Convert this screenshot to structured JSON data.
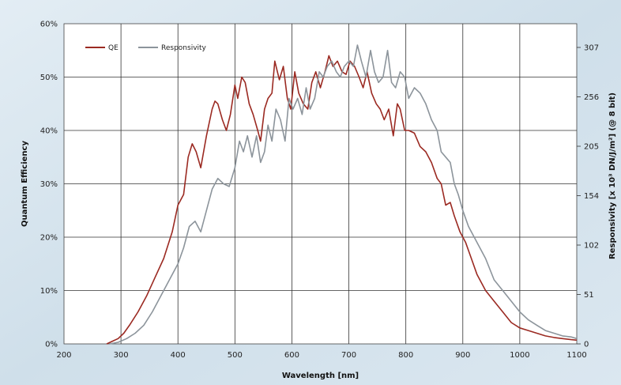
{
  "chart_data": {
    "type": "line",
    "xlabel": "Wavelength [nm]",
    "ylabel": "Quantum Efficiency",
    "ylabel_right": "Responsivity [x 10³ DN/J/m²] (@ 8 bit)",
    "xlim": [
      200,
      1100
    ],
    "ylim": [
      0,
      60
    ],
    "x_ticks": [
      200,
      300,
      400,
      500,
      600,
      700,
      800,
      900,
      1000,
      1100
    ],
    "y_ticks": [
      0,
      10,
      20,
      30,
      40,
      50,
      60
    ],
    "y_tick_labels": [
      "0%",
      "10%",
      "20%",
      "30%",
      "40%",
      "50%",
      "60%"
    ],
    "y_right_ticks": [
      0,
      51,
      102,
      154,
      205,
      256,
      307
    ],
    "grid": true,
    "legend_position": "top-left",
    "series": [
      {
        "name": "QE",
        "color": "#9b2a22",
        "x": [
          275,
          285,
          295,
          305,
          315,
          330,
          345,
          360,
          375,
          390,
          400,
          410,
          418,
          425,
          432,
          440,
          450,
          460,
          465,
          470,
          478,
          485,
          492,
          500,
          505,
          512,
          518,
          525,
          532,
          540,
          545,
          552,
          558,
          565,
          570,
          578,
          585,
          592,
          598,
          605,
          612,
          620,
          628,
          635,
          642,
          650,
          658,
          665,
          672,
          680,
          688,
          695,
          702,
          710,
          718,
          725,
          732,
          740,
          748,
          755,
          762,
          770,
          778,
          785,
          790,
          798,
          805,
          815,
          825,
          835,
          845,
          855,
          862,
          870,
          878,
          885,
          895,
          905,
          915,
          925,
          940,
          955,
          970,
          985,
          1000,
          1015,
          1030,
          1045,
          1060,
          1075,
          1090,
          1100
        ],
        "y": [
          0,
          0.5,
          1,
          2,
          3.5,
          6,
          9,
          12.5,
          16,
          21,
          26,
          28,
          35,
          37.5,
          36,
          33,
          39,
          44,
          45.5,
          45,
          42,
          40,
          43,
          48.5,
          46,
          50,
          49,
          45,
          43,
          40,
          38,
          44,
          46,
          47,
          53,
          49.5,
          52,
          46,
          44,
          51,
          47,
          45,
          44,
          49,
          51,
          48,
          51,
          54,
          52,
          53,
          51,
          50.5,
          53,
          52,
          50,
          48,
          51,
          47,
          45,
          44,
          42,
          44,
          39,
          45,
          44,
          40,
          40,
          39.5,
          37,
          36,
          34,
          31,
          30,
          26,
          26.5,
          24,
          21,
          19,
          16,
          13,
          10,
          8,
          6,
          4,
          3,
          2.5,
          2,
          1.5,
          1.2,
          1,
          0.8,
          0.7
        ]
      },
      {
        "name": "Responsivity",
        "color": "#8c949b",
        "x": [
          280,
          295,
          310,
          325,
          340,
          355,
          370,
          385,
          400,
          410,
          420,
          430,
          440,
          450,
          460,
          470,
          480,
          490,
          500,
          508,
          515,
          522,
          530,
          538,
          545,
          552,
          558,
          565,
          572,
          580,
          588,
          595,
          602,
          610,
          618,
          625,
          632,
          640,
          648,
          655,
          662,
          670,
          678,
          685,
          692,
          700,
          708,
          715,
          722,
          730,
          738,
          745,
          752,
          760,
          768,
          775,
          782,
          790,
          798,
          805,
          815,
          825,
          835,
          845,
          855,
          862,
          870,
          878,
          885,
          892,
          900,
          910,
          920,
          930,
          940,
          955,
          970,
          985,
          1000,
          1015,
          1030,
          1045,
          1060,
          1075,
          1090,
          1100
        ],
        "y": [
          0,
          0.3,
          1,
          2,
          3.5,
          6,
          9,
          12,
          15,
          18,
          22,
          23,
          21,
          25,
          29,
          31,
          30,
          29.5,
          33,
          38,
          36,
          39,
          35,
          39,
          34,
          36,
          41,
          38,
          44,
          42,
          38,
          46,
          44,
          46,
          43,
          48,
          44,
          46,
          51,
          50,
          52,
          53,
          51,
          50,
          52,
          53,
          52,
          56,
          53,
          50,
          55,
          51,
          49,
          50,
          55,
          49,
          48,
          51,
          50,
          46,
          48,
          47,
          45,
          42,
          40,
          36,
          35,
          34,
          30,
          28,
          25,
          22,
          20,
          18,
          16,
          12,
          10,
          8,
          6,
          4.5,
          3.5,
          2.5,
          2,
          1.5,
          1.3,
          1
        ]
      }
    ]
  }
}
